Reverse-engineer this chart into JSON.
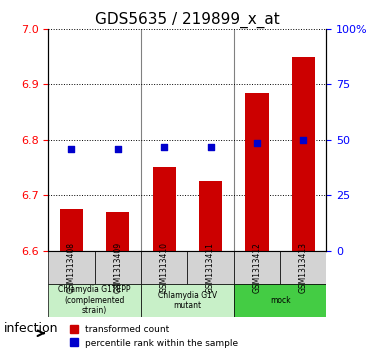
{
  "title": "GDS5635 / 219899_x_at",
  "samples": [
    "GSM1313408",
    "GSM1313409",
    "GSM1313410",
    "GSM1313411",
    "GSM1313412",
    "GSM1313413"
  ],
  "bar_values": [
    6.675,
    6.67,
    6.75,
    6.725,
    6.885,
    6.95
  ],
  "bar_bottom": 6.6,
  "percentile_values": [
    6.783,
    6.783,
    6.787,
    6.787,
    6.795,
    6.8
  ],
  "bar_color": "#cc0000",
  "dot_color": "#0000cc",
  "ylim_left": [
    6.6,
    7.0
  ],
  "yticks_left": [
    6.6,
    6.7,
    6.8,
    6.9,
    7.0
  ],
  "ylim_right": [
    0,
    100
  ],
  "yticks_right": [
    0,
    25,
    50,
    75,
    100
  ],
  "yticklabels_right": [
    "0",
    "25",
    "50",
    "75",
    "100%"
  ],
  "groups": [
    {
      "label": "Chlamydia G1TEPP\n(complemented\nstrain)",
      "start": 0,
      "end": 2,
      "color": "#c8f0c8"
    },
    {
      "label": "Chlamydia G1V\nmutant",
      "start": 2,
      "end": 4,
      "color": "#c8f0c8"
    },
    {
      "label": "mock",
      "start": 4,
      "end": 6,
      "color": "#44cc44"
    }
  ],
  "infection_label": "infection",
  "legend_bar_label": "transformed count",
  "legend_dot_label": "percentile rank within the sample",
  "bar_width": 0.5,
  "grid_color": "#000000",
  "grid_linestyle": "dotted"
}
